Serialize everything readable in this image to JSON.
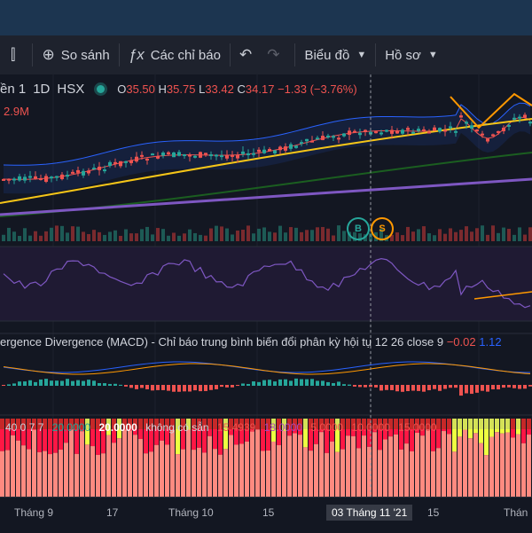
{
  "toolbar": {
    "compare_label": "So sánh",
    "indicators_label": "Các chỉ báo",
    "chart_label": "Biểu đồ",
    "profile_label": "Hồ sơ"
  },
  "legend": {
    "symbol_fragment": "ền 1",
    "interval": "1D",
    "exchange": "HSX",
    "o_key": "O",
    "o_val": "35.50",
    "h_key": "H",
    "h_val": "35.75",
    "l_key": "L",
    "l_val": "33.42",
    "c_key": "C",
    "c_val": "34.17",
    "change": "−1.33 (−3.76%)",
    "volume": "2.9M"
  },
  "macd": {
    "title": "ergence Divergence (MACD) - Chỉ báo trung bình biến đổi phân kỳ hội tụ",
    "params": "12 26 close 9",
    "v1": "−0.02",
    "v2": "1.12"
  },
  "indicator_row": {
    "a": "40 0 7 7",
    "b": "20.0000",
    "c": "20.0000",
    "d": "không có sẵn",
    "e": "15.4939",
    "f": "18.0000",
    "g": "5.0000",
    "h": "10.0000",
    "i": "15.0000"
  },
  "signals": {
    "buy": "B",
    "sell": "S"
  },
  "xaxis": {
    "labels": [
      "Tháng 9",
      "17",
      "Tháng 10",
      "15",
      "03 Tháng 11 '21",
      "15",
      "Thán"
    ]
  },
  "colors": {
    "up": "#26a69a",
    "down": "#ef5350",
    "background": "#131722"
  }
}
